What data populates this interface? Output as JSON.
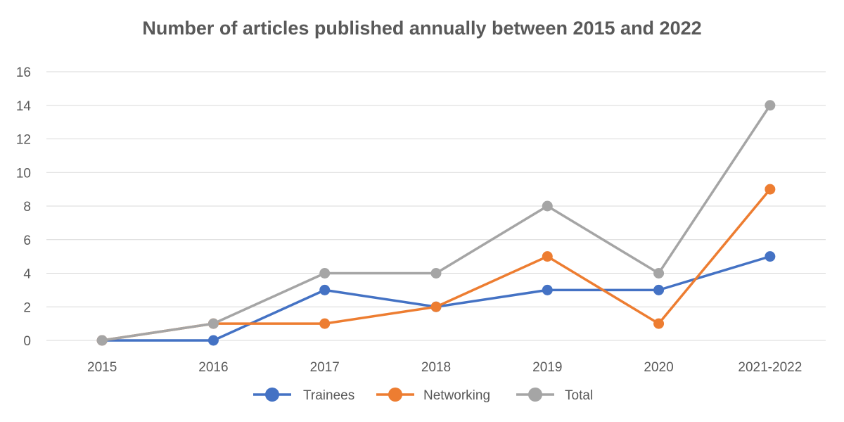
{
  "chart_data": {
    "type": "line",
    "title": "Number of articles published annually between 2015 and 2022",
    "xlabel": "",
    "ylabel": "",
    "categories": [
      "2015",
      "2016",
      "2017",
      "2018",
      "2019",
      "2020",
      "2021-2022"
    ],
    "ylim": [
      0,
      16
    ],
    "yticks": [
      0,
      2,
      4,
      6,
      8,
      10,
      12,
      14,
      16
    ],
    "grid": true,
    "legend_position": "bottom",
    "series": [
      {
        "name": "Trainees",
        "color": "#4472c4",
        "values": [
          0,
          0,
          3,
          2,
          3,
          3,
          5
        ]
      },
      {
        "name": "Networking",
        "color": "#ed7d31",
        "values": [
          0,
          1,
          1,
          2,
          5,
          1,
          9
        ]
      },
      {
        "name": "Total",
        "color": "#a5a5a5",
        "values": [
          0,
          1,
          4,
          4,
          8,
          4,
          14
        ]
      }
    ]
  }
}
